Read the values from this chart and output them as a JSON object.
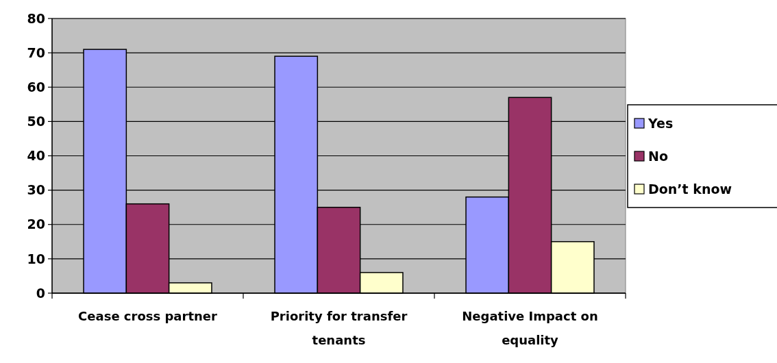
{
  "chart_data": {
    "type": "bar",
    "categories": [
      "Cease cross partner",
      "Priority for transfer tenants",
      "Negative Impact on equality"
    ],
    "series": [
      {
        "name": "Yes",
        "color": "#9999ff",
        "values": [
          71,
          69,
          28
        ]
      },
      {
        "name": "No",
        "color": "#993366",
        "values": [
          26,
          25,
          57
        ]
      },
      {
        "name": "Don’t know",
        "color": "#ffffcc",
        "values": [
          3,
          6,
          15
        ]
      }
    ],
    "ylim": [
      0,
      80
    ],
    "yticks": [
      0,
      10,
      20,
      30,
      40,
      50,
      60,
      70,
      80
    ],
    "grid": "y",
    "legend": "right"
  }
}
